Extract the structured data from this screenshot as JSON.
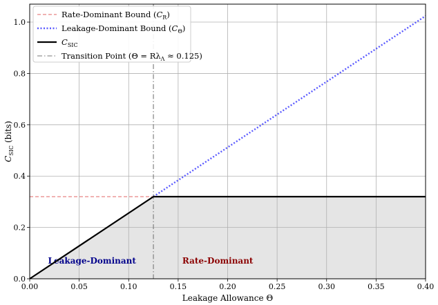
{
  "chart_data": {
    "type": "line",
    "xlabel": "Leakage Allowance Θ",
    "ylabel": "C_SIC (bits)",
    "xlim": [
      0.0,
      0.4
    ],
    "ylim": [
      0.0,
      1.07
    ],
    "x_ticks": [
      0.0,
      0.05,
      0.1,
      0.15,
      0.2,
      0.25,
      0.3,
      0.35,
      0.4
    ],
    "x_tick_labels": [
      "0.00",
      "0.05",
      "0.10",
      "0.15",
      "0.20",
      "0.25",
      "0.30",
      "0.35",
      "0.40"
    ],
    "y_ticks": [
      0.0,
      0.2,
      0.4,
      0.6,
      0.8,
      1.0
    ],
    "y_tick_labels": [
      "0.0",
      "0.2",
      "0.4",
      "0.6",
      "0.8",
      "1.0"
    ],
    "grid": true,
    "legend_position": "top-left",
    "series": [
      {
        "name": "Rate-Dominant Bound (C_R)",
        "style": "dashed",
        "color": "#e06666",
        "x": [
          0.0,
          0.125
        ],
        "y": [
          0.32,
          0.32
        ]
      },
      {
        "name": "Leakage-Dominant Bound (C_Θ)",
        "style": "dotted",
        "color": "#5a5aff",
        "x": [
          0.125,
          0.4
        ],
        "y": [
          0.32,
          1.024
        ]
      },
      {
        "name": "C_SIC",
        "style": "solid",
        "color": "#000000",
        "x": [
          0.0,
          0.125,
          0.4
        ],
        "y": [
          0.0,
          0.32,
          0.32
        ]
      }
    ],
    "vertical_line": {
      "name": "Transition Point (Θ = Rλ_Λ ≈ 0.125)",
      "x": 0.125,
      "style": "dashdot",
      "color": "#777777"
    },
    "fill_color": "#e5e5e5",
    "annotations": [
      {
        "text": "Leakage-Dominant",
        "x": 0.063,
        "y": 0.07,
        "color": "#00008b"
      },
      {
        "text": "Rate-Dominant",
        "x": 0.19,
        "y": 0.07,
        "color": "#8b0000"
      }
    ]
  },
  "legend": {
    "items": [
      {
        "key": "rate",
        "text": "Rate-Dominant Bound (",
        "sym": "C",
        "sub": "R",
        "tail": ")",
        "style": "dashed",
        "color": "#e06666"
      },
      {
        "key": "leak",
        "text": "Leakage-Dominant Bound (",
        "sym": "C",
        "sub": "Θ",
        "tail": ")",
        "style": "dotted",
        "color": "#5a5aff"
      },
      {
        "key": "csic",
        "text": "",
        "sym": "C",
        "sub": "SIC",
        "tail": "",
        "style": "solid",
        "color": "#000000"
      },
      {
        "key": "trans",
        "text": "Transition Point (Θ = Rλ",
        "sym": "",
        "sub": "Λ",
        "tail": " ≈ 0.125)",
        "style": "dashdot",
        "color": "#777777"
      }
    ]
  }
}
